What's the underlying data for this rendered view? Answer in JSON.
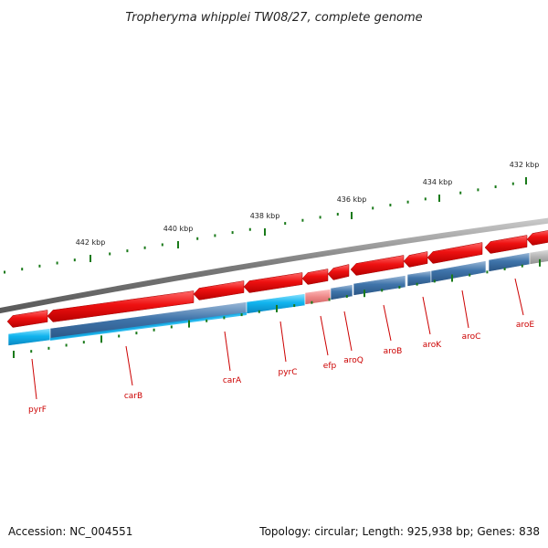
{
  "title": "Tropheryma whipplei TW08/27, complete genome",
  "footer": {
    "accession": "Accession: NC_004551",
    "summary": "Topology: circular; Length: 925,938 bp; Genes: 838"
  },
  "colors": {
    "gene_forward": "#ee1111",
    "track_cyan": "#11b4ee",
    "track_steel": "#3f74aa",
    "track_pink": "#ee8888",
    "track_gray": "#aaaaaa",
    "tick": "#1a7a1a",
    "label": "#cc0000",
    "backbone": "#808080"
  },
  "scale_labels": [
    "442 kbp",
    "440 kbp",
    "438 kbp",
    "436 kbp",
    "434 kbp",
    "432 kbp"
  ],
  "genes": [
    {
      "name": "pyrF",
      "track": "cyan"
    },
    {
      "name": "carB",
      "track": "steel"
    },
    {
      "name": "carA",
      "track": "cyan"
    },
    {
      "name": "pyrC",
      "track": "cyan"
    },
    {
      "name": "efp",
      "track": "pink"
    },
    {
      "name": "aroQ",
      "track": "steel"
    },
    {
      "name": "aroB",
      "track": "steel"
    },
    {
      "name": "aroK",
      "track": "steel"
    },
    {
      "name": "aroC",
      "track": "steel"
    },
    {
      "name": "aroE",
      "track": "steel"
    }
  ]
}
